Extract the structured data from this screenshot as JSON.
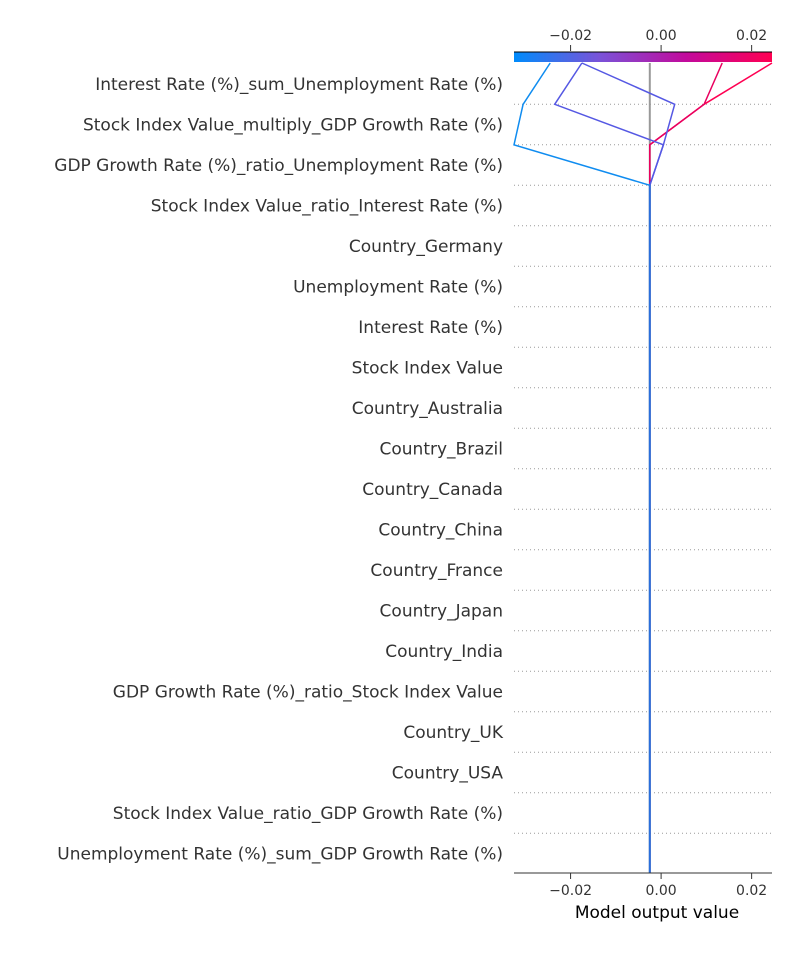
{
  "chart_data": {
    "type": "decision-plot",
    "xlabel": "Model output value",
    "xlim": [
      -0.0325,
      0.0245
    ],
    "xticks": [
      {
        "value": -0.02,
        "label": "−0.02"
      },
      {
        "value": 0.0,
        "label": "0.00"
      },
      {
        "value": 0.02,
        "label": "0.02"
      }
    ],
    "base_value": -0.0025,
    "features": [
      "Interest Rate (%)_sum_Unemployment Rate (%)",
      "Stock Index Value_multiply_GDP Growth Rate (%)",
      "GDP Growth Rate (%)_ratio_Unemployment Rate (%)",
      "Stock Index Value_ratio_Interest Rate (%)",
      "Country_Germany",
      "Unemployment Rate (%)",
      "Interest Rate (%)",
      "Stock Index Value",
      "Country_Australia",
      "Country_Brazil",
      "Country_Canada",
      "Country_China",
      "Country_France",
      "Country_Japan",
      "Country_India",
      "GDP Growth Rate (%)_ratio_Stock Index Value",
      "Country_UK",
      "Country_USA",
      "Stock Index Value_ratio_GDP Growth Rate (%)",
      "Unemployment Rate (%)_sum_GDP Growth Rate (%)"
    ],
    "series": [
      {
        "color": "#ff0052",
        "values_top_to_bottom": [
          0.0245,
          0.0095,
          -0.0025,
          -0.0025
        ]
      },
      {
        "color": "#e9005f",
        "values_top_to_bottom": [
          0.0135,
          0.0095,
          -0.0025,
          -0.0025
        ]
      },
      {
        "color": "#5558e3",
        "values_top_to_bottom": [
          -0.0175,
          0.003,
          0.0005,
          -0.0025
        ]
      },
      {
        "color": "#5558e3",
        "values_top_to_bottom": [
          -0.0175,
          -0.0235,
          0.0005,
          -0.0025
        ]
      },
      {
        "color": "#0f8cf0",
        "values_top_to_bottom": [
          -0.0245,
          -0.0305,
          -0.0325,
          -0.0025
        ]
      }
    ],
    "colorbar": {
      "colors": [
        "#008bfb",
        "#7a52d8",
        "#c20a9c",
        "#ff0052"
      ]
    },
    "grid": "dotted horizontal per feature"
  }
}
